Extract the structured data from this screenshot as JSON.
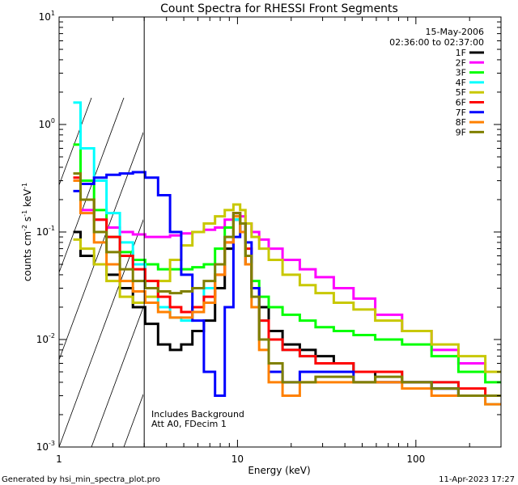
{
  "chart_data": {
    "type": "line",
    "title": "Count Spectra for RHESSI Front Segments",
    "date": "15-May-2006",
    "time_range": "02:36:00 to 02:37:00",
    "xlabel": "Energy (keV)",
    "ylabel_parts": [
      "counts cm",
      "-2",
      " s",
      "-1",
      " keV",
      "-1"
    ],
    "xscale": "log",
    "yscale": "log",
    "xlim": [
      1,
      300
    ],
    "ylim": [
      0.001,
      10
    ],
    "x_ticks": [
      {
        "v": 1,
        "label": "1"
      },
      {
        "v": 10,
        "label": "10"
      },
      {
        "v": 100,
        "label": "100"
      }
    ],
    "y_ticks": [
      {
        "v": 0.001,
        "base": "10",
        "exp": "-3"
      },
      {
        "v": 0.01,
        "base": "10",
        "exp": "-2"
      },
      {
        "v": 0.1,
        "base": "10",
        "exp": "-1"
      },
      {
        "v": 1,
        "base": "10",
        "exp": "0"
      },
      {
        "v": 10,
        "base": "10",
        "exp": "1"
      }
    ],
    "threshold_energy": 3,
    "notes": [
      "Includes Background",
      "Att A0, FDecim 1"
    ],
    "footer_left": "Generated by hsi_min_spectra_plot.pro",
    "footer_right": "11-Apr-2023 17:27",
    "legend_position": "top-right",
    "series": [
      {
        "name": "1F",
        "color": "#000000",
        "points": [
          [
            1.2,
            0.1
          ],
          [
            1.45,
            0.06
          ],
          [
            1.7,
            0.05
          ],
          [
            2.0,
            0.04
          ],
          [
            2.4,
            0.03
          ],
          [
            2.8,
            0.02
          ],
          [
            3.3,
            0.014
          ],
          [
            3.9,
            0.009
          ],
          [
            4.5,
            0.008
          ],
          [
            5.2,
            0.009
          ],
          [
            6.0,
            0.012
          ],
          [
            7.0,
            0.015
          ],
          [
            8.0,
            0.03
          ],
          [
            9.0,
            0.07
          ],
          [
            10.0,
            0.13
          ],
          [
            10.7,
            0.1
          ],
          [
            11.5,
            0.05
          ],
          [
            12.5,
            0.03
          ],
          [
            14,
            0.02
          ],
          [
            16,
            0.012
          ],
          [
            20,
            0.009
          ],
          [
            25,
            0.008
          ],
          [
            30,
            0.007
          ],
          [
            40,
            0.006
          ],
          [
            50,
            0.005
          ],
          [
            70,
            0.004
          ],
          [
            100,
            0.004
          ],
          [
            150,
            0.0035
          ],
          [
            200,
            0.003
          ],
          [
            300,
            0.003
          ]
        ]
      },
      {
        "name": "2F",
        "color": "#ff00ff",
        "points": [
          [
            1.2,
            0.3
          ],
          [
            1.45,
            0.16
          ],
          [
            1.7,
            0.13
          ],
          [
            2.0,
            0.11
          ],
          [
            2.4,
            0.1
          ],
          [
            2.8,
            0.095
          ],
          [
            3.3,
            0.09
          ],
          [
            3.9,
            0.09
          ],
          [
            4.5,
            0.093
          ],
          [
            5.2,
            0.097
          ],
          [
            6.0,
            0.1
          ],
          [
            7.0,
            0.105
          ],
          [
            8.0,
            0.11
          ],
          [
            9.0,
            0.13
          ],
          [
            10.0,
            0.15
          ],
          [
            10.7,
            0.14
          ],
          [
            11.5,
            0.12
          ],
          [
            12.5,
            0.1
          ],
          [
            14,
            0.085
          ],
          [
            16,
            0.07
          ],
          [
            20,
            0.055
          ],
          [
            25,
            0.045
          ],
          [
            30,
            0.038
          ],
          [
            40,
            0.03
          ],
          [
            50,
            0.024
          ],
          [
            70,
            0.017
          ],
          [
            100,
            0.012
          ],
          [
            150,
            0.008
          ],
          [
            200,
            0.006
          ],
          [
            300,
            0.005
          ]
        ]
      },
      {
        "name": "3F",
        "color": "#00ff00",
        "points": [
          [
            1.2,
            0.65
          ],
          [
            1.45,
            0.3
          ],
          [
            1.7,
            0.16
          ],
          [
            2.0,
            0.09
          ],
          [
            2.4,
            0.065
          ],
          [
            2.8,
            0.055
          ],
          [
            3.3,
            0.05
          ],
          [
            3.9,
            0.045
          ],
          [
            4.5,
            0.045
          ],
          [
            5.2,
            0.045
          ],
          [
            6.0,
            0.047
          ],
          [
            7.0,
            0.05
          ],
          [
            8.0,
            0.07
          ],
          [
            9.0,
            0.11
          ],
          [
            10.0,
            0.14
          ],
          [
            10.7,
            0.1
          ],
          [
            11.5,
            0.06
          ],
          [
            12.5,
            0.035
          ],
          [
            14,
            0.025
          ],
          [
            16,
            0.02
          ],
          [
            20,
            0.017
          ],
          [
            25,
            0.015
          ],
          [
            30,
            0.013
          ],
          [
            40,
            0.012
          ],
          [
            50,
            0.011
          ],
          [
            70,
            0.01
          ],
          [
            100,
            0.009
          ],
          [
            150,
            0.007
          ],
          [
            200,
            0.005
          ],
          [
            300,
            0.004
          ]
        ]
      },
      {
        "name": "4F",
        "color": "#00ffff",
        "points": [
          [
            1.2,
            1.6
          ],
          [
            1.45,
            0.6
          ],
          [
            1.7,
            0.3
          ],
          [
            2.0,
            0.15
          ],
          [
            2.4,
            0.08
          ],
          [
            2.8,
            0.05
          ],
          [
            3.3,
            0.03
          ],
          [
            3.9,
            0.02
          ],
          [
            4.5,
            0.016
          ],
          [
            5.2,
            0.015
          ],
          [
            6.0,
            0.02
          ],
          [
            7.0,
            0.03
          ],
          [
            8.0,
            0.05
          ],
          [
            9.0,
            0.09
          ],
          [
            10.0,
            0.13
          ],
          [
            10.7,
            0.1
          ],
          [
            11.5,
            0.06
          ],
          [
            12.5,
            0.03
          ],
          [
            14,
            0.015
          ],
          [
            16,
            0.01
          ],
          [
            20,
            0.008
          ],
          [
            25,
            0.007
          ],
          [
            30,
            0.006
          ],
          [
            40,
            0.006
          ],
          [
            50,
            0.005
          ],
          [
            70,
            0.005
          ],
          [
            100,
            0.004
          ],
          [
            150,
            0.004
          ],
          [
            200,
            0.003
          ],
          [
            300,
            0.0025
          ]
        ]
      },
      {
        "name": "5F",
        "color": "#c8c800",
        "points": [
          [
            1.2,
            0.085
          ],
          [
            1.45,
            0.07
          ],
          [
            1.7,
            0.05
          ],
          [
            2.0,
            0.035
          ],
          [
            2.4,
            0.025
          ],
          [
            2.8,
            0.022
          ],
          [
            3.3,
            0.025
          ],
          [
            3.9,
            0.035
          ],
          [
            4.5,
            0.055
          ],
          [
            5.2,
            0.075
          ],
          [
            6.0,
            0.1
          ],
          [
            7.0,
            0.12
          ],
          [
            8.0,
            0.14
          ],
          [
            9.0,
            0.16
          ],
          [
            10.0,
            0.18
          ],
          [
            10.7,
            0.16
          ],
          [
            11.5,
            0.12
          ],
          [
            12.5,
            0.09
          ],
          [
            14,
            0.07
          ],
          [
            16,
            0.055
          ],
          [
            20,
            0.04
          ],
          [
            25,
            0.032
          ],
          [
            30,
            0.027
          ],
          [
            40,
            0.022
          ],
          [
            50,
            0.019
          ],
          [
            70,
            0.015
          ],
          [
            100,
            0.012
          ],
          [
            150,
            0.009
          ],
          [
            200,
            0.007
          ],
          [
            300,
            0.005
          ]
        ]
      },
      {
        "name": "6F",
        "color": "#ff0000",
        "points": [
          [
            1.2,
            0.32
          ],
          [
            1.45,
            0.2
          ],
          [
            1.7,
            0.13
          ],
          [
            2.0,
            0.09
          ],
          [
            2.4,
            0.06
          ],
          [
            2.8,
            0.045
          ],
          [
            3.3,
            0.035
          ],
          [
            3.9,
            0.025
          ],
          [
            4.5,
            0.02
          ],
          [
            5.2,
            0.018
          ],
          [
            6.0,
            0.02
          ],
          [
            7.0,
            0.025
          ],
          [
            8.0,
            0.04
          ],
          [
            9.0,
            0.08
          ],
          [
            10.0,
            0.15
          ],
          [
            10.7,
            0.12
          ],
          [
            11.5,
            0.07
          ],
          [
            12.5,
            0.03
          ],
          [
            14,
            0.015
          ],
          [
            16,
            0.01
          ],
          [
            20,
            0.008
          ],
          [
            25,
            0.007
          ],
          [
            30,
            0.006
          ],
          [
            40,
            0.006
          ],
          [
            50,
            0.005
          ],
          [
            70,
            0.005
          ],
          [
            100,
            0.004
          ],
          [
            150,
            0.004
          ],
          [
            200,
            0.0035
          ],
          [
            300,
            0.003
          ]
        ]
      },
      {
        "name": "7F",
        "color": "#0000ff",
        "points": [
          [
            1.2,
            0.24
          ],
          [
            1.45,
            0.28
          ],
          [
            1.7,
            0.32
          ],
          [
            2.0,
            0.34
          ],
          [
            2.4,
            0.35
          ],
          [
            2.8,
            0.36
          ],
          [
            3.3,
            0.32
          ],
          [
            3.9,
            0.22
          ],
          [
            4.5,
            0.1
          ],
          [
            5.2,
            0.04
          ],
          [
            6.0,
            0.015
          ],
          [
            7.0,
            0.005
          ],
          [
            8.0,
            0.003
          ],
          [
            9.0,
            0.02
          ],
          [
            10.0,
            0.09
          ],
          [
            10.7,
            0.12
          ],
          [
            11.5,
            0.08
          ],
          [
            12.5,
            0.03
          ],
          [
            14,
            0.01
          ],
          [
            16,
            0.005
          ],
          [
            20,
            0.004
          ],
          [
            25,
            0.005
          ],
          [
            30,
            0.005
          ],
          [
            40,
            0.005
          ],
          [
            50,
            0.004
          ],
          [
            70,
            0.004
          ],
          [
            100,
            0.004
          ],
          [
            150,
            0.0035
          ],
          [
            200,
            0.003
          ],
          [
            300,
            0.003
          ]
        ]
      },
      {
        "name": "8F",
        "color": "#ff8000",
        "points": [
          [
            1.2,
            0.3
          ],
          [
            1.45,
            0.15
          ],
          [
            1.7,
            0.08
          ],
          [
            2.0,
            0.05
          ],
          [
            2.4,
            0.035
          ],
          [
            2.8,
            0.028
          ],
          [
            3.3,
            0.022
          ],
          [
            3.9,
            0.018
          ],
          [
            4.5,
            0.016
          ],
          [
            5.2,
            0.016
          ],
          [
            6.0,
            0.018
          ],
          [
            7.0,
            0.022
          ],
          [
            8.0,
            0.04
          ],
          [
            9.0,
            0.08
          ],
          [
            10.0,
            0.14
          ],
          [
            10.7,
            0.1
          ],
          [
            11.5,
            0.05
          ],
          [
            12.5,
            0.02
          ],
          [
            14,
            0.008
          ],
          [
            16,
            0.004
          ],
          [
            20,
            0.003
          ],
          [
            25,
            0.004
          ],
          [
            30,
            0.004
          ],
          [
            40,
            0.004
          ],
          [
            50,
            0.004
          ],
          [
            70,
            0.004
          ],
          [
            100,
            0.0035
          ],
          [
            150,
            0.003
          ],
          [
            200,
            0.003
          ],
          [
            300,
            0.0025
          ]
        ]
      },
      {
        "name": "9F",
        "color": "#808000",
        "points": [
          [
            1.2,
            0.35
          ],
          [
            1.45,
            0.2
          ],
          [
            1.7,
            0.1
          ],
          [
            2.0,
            0.065
          ],
          [
            2.4,
            0.045
          ],
          [
            2.8,
            0.035
          ],
          [
            3.3,
            0.03
          ],
          [
            3.9,
            0.028
          ],
          [
            4.5,
            0.027
          ],
          [
            5.2,
            0.028
          ],
          [
            6.0,
            0.03
          ],
          [
            7.0,
            0.035
          ],
          [
            8.0,
            0.05
          ],
          [
            9.0,
            0.09
          ],
          [
            10.0,
            0.15
          ],
          [
            10.7,
            0.12
          ],
          [
            11.5,
            0.06
          ],
          [
            12.5,
            0.025
          ],
          [
            14,
            0.01
          ],
          [
            16,
            0.006
          ],
          [
            20,
            0.004
          ],
          [
            25,
            0.004
          ],
          [
            30,
            0.0045
          ],
          [
            40,
            0.0045
          ],
          [
            50,
            0.004
          ],
          [
            70,
            0.0045
          ],
          [
            100,
            0.004
          ],
          [
            150,
            0.0035
          ],
          [
            200,
            0.003
          ],
          [
            300,
            0.003
          ]
        ]
      }
    ]
  }
}
